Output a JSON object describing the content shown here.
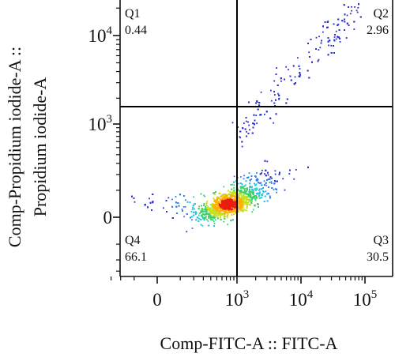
{
  "chart_data": {
    "type": "scatter",
    "plot_style": "flow-cytometry density dot plot (pseudocolor)",
    "xlabel": "Comp-FITC-A :: FITC-A",
    "ylabel_line1": "Comp-Propidium iodide-A ::",
    "ylabel_line2": "Propidium iodide-A",
    "x_scale": "biexponential",
    "y_scale": "biexponential",
    "x_ticks": [
      {
        "value": 0,
        "label": "0"
      },
      {
        "value": 1000,
        "label": "10",
        "exp": "3"
      },
      {
        "value": 10000,
        "label": "10",
        "exp": "4"
      },
      {
        "value": 100000,
        "label": "10",
        "exp": "5"
      }
    ],
    "y_ticks": [
      {
        "value": 0,
        "label": "0"
      },
      {
        "value": 1000,
        "label": "10",
        "exp": "3"
      },
      {
        "value": 10000,
        "label": "10",
        "exp": "4"
      }
    ],
    "gates": {
      "x": 1000,
      "y": 1600
    },
    "quadrants": [
      {
        "id": "Q1",
        "label": "Q1",
        "percent": "0.44",
        "position": "top-left"
      },
      {
        "id": "Q2",
        "label": "Q2",
        "percent": "2.96",
        "position": "top-right"
      },
      {
        "id": "Q3",
        "label": "Q3",
        "percent": "30.5",
        "position": "bottom-right"
      },
      {
        "id": "Q4",
        "label": "Q4",
        "percent": "66.1",
        "position": "bottom-left"
      }
    ],
    "density_colors": [
      "#2a2fd0",
      "#2f7fe8",
      "#27c6e0",
      "#3fd06a",
      "#c8e020",
      "#ffb000",
      "#e81e10"
    ],
    "grid": false,
    "legend": "none"
  }
}
